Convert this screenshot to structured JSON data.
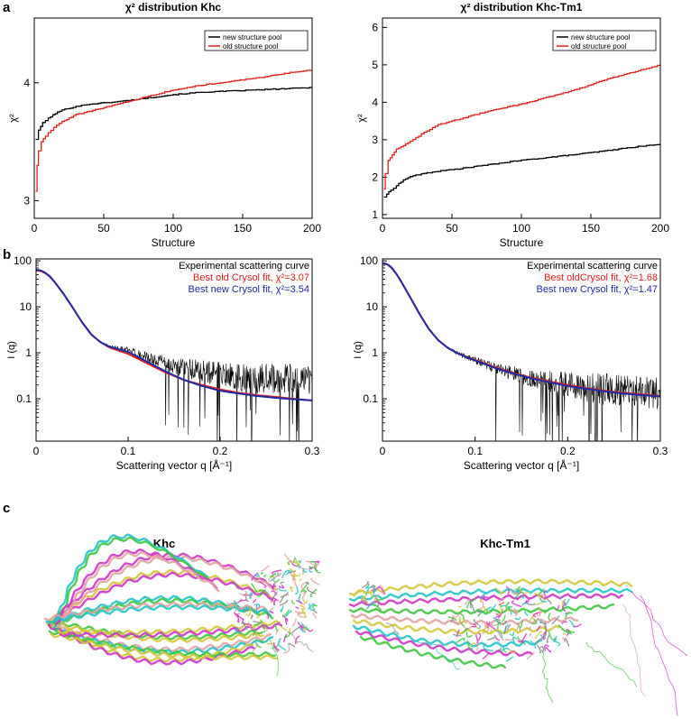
{
  "panels": {
    "a": "a",
    "b": "b",
    "c": "c"
  },
  "structures": {
    "left_title": "Khc",
    "right_title": "Khc-Tm1",
    "colors": [
      "#d4c63a",
      "#23c4c9",
      "#d234c8",
      "#3cc83c",
      "#e2a3a3",
      "#8c8c8c"
    ]
  },
  "chart_data": [
    {
      "id": "a-left",
      "type": "line",
      "title": "χ² distribution Khc",
      "xlabel": "Structure",
      "ylabel": "χ²",
      "xlim": [
        0,
        200
      ],
      "ylim": [
        2.85,
        4.55
      ],
      "xticks": [
        0,
        50,
        100,
        150,
        200
      ],
      "yticks": [
        3,
        4
      ],
      "legend_position": "top-right",
      "series": [
        {
          "name": "new structure pool",
          "color": "#000000",
          "x": [
            1,
            3,
            6,
            10,
            15,
            20,
            30,
            40,
            50,
            60,
            80,
            100,
            120,
            140,
            160,
            180,
            200
          ],
          "values": [
            3.52,
            3.6,
            3.66,
            3.7,
            3.74,
            3.77,
            3.8,
            3.82,
            3.83,
            3.84,
            3.87,
            3.9,
            3.92,
            3.93,
            3.94,
            3.95,
            3.96
          ]
        },
        {
          "name": "old structure pool",
          "color": "#e3201b",
          "x": [
            1,
            2,
            3,
            5,
            8,
            12,
            16,
            20,
            25,
            30,
            40,
            50,
            60,
            80,
            100,
            120,
            140,
            160,
            180,
            200
          ],
          "values": [
            3.08,
            3.3,
            3.42,
            3.5,
            3.55,
            3.6,
            3.64,
            3.67,
            3.7,
            3.73,
            3.76,
            3.79,
            3.82,
            3.88,
            3.94,
            3.98,
            4.01,
            4.04,
            4.08,
            4.11
          ]
        }
      ]
    },
    {
      "id": "a-right",
      "type": "line",
      "title": "χ² distribution Khc-Tm1",
      "xlabel": "Structure",
      "ylabel": "χ²",
      "xlim": [
        0,
        200
      ],
      "ylim": [
        0.9,
        6.25
      ],
      "xticks": [
        0,
        50,
        100,
        150,
        200
      ],
      "yticks": [
        1,
        2,
        3,
        4,
        5,
        6
      ],
      "legend_position": "top-right",
      "series": [
        {
          "name": "new structure pool",
          "color": "#000000",
          "x": [
            1,
            3,
            6,
            10,
            15,
            20,
            30,
            40,
            50,
            60,
            80,
            100,
            120,
            140,
            160,
            180,
            200
          ],
          "values": [
            1.47,
            1.55,
            1.65,
            1.78,
            1.92,
            2.02,
            2.1,
            2.16,
            2.2,
            2.25,
            2.35,
            2.45,
            2.53,
            2.61,
            2.7,
            2.8,
            2.88
          ]
        },
        {
          "name": "old structure pool",
          "color": "#e3201b",
          "x": [
            1,
            2,
            4,
            7,
            10,
            15,
            20,
            30,
            40,
            50,
            60,
            80,
            100,
            120,
            140,
            160,
            180,
            200
          ],
          "values": [
            1.68,
            2.1,
            2.45,
            2.6,
            2.75,
            2.85,
            2.95,
            3.2,
            3.4,
            3.5,
            3.6,
            3.8,
            3.95,
            4.15,
            4.35,
            4.6,
            4.8,
            5.0
          ]
        }
      ]
    },
    {
      "id": "b-left",
      "type": "line",
      "title": "",
      "xlabel": "Scattering vector q [Å⁻¹]",
      "ylabel": "I (q)",
      "xlim": [
        0,
        0.3
      ],
      "ylim": [
        0.012,
        110
      ],
      "yscale": "log",
      "xticks": [
        0,
        0.1,
        0.2,
        0.3
      ],
      "yticks": [
        0.1,
        1,
        10,
        100
      ],
      "legend_position": "top-right",
      "series": [
        {
          "name": "Experimental scattering curve",
          "color": "#000000",
          "x": [
            0,
            0.005,
            0.01,
            0.015,
            0.02,
            0.03,
            0.04,
            0.05,
            0.06,
            0.07,
            0.08,
            0.1,
            0.12,
            0.14,
            0.16,
            0.18,
            0.2,
            0.22,
            0.24,
            0.26,
            0.28,
            0.3
          ],
          "values": [
            62,
            60,
            54,
            45,
            35,
            19,
            9.5,
            4.6,
            2.5,
            1.7,
            1.35,
            1.1,
            0.8,
            0.6,
            0.47,
            0.4,
            0.33,
            0.3,
            0.28,
            0.27,
            0.26,
            0.25
          ]
        },
        {
          "name": "Best old Crysol fit, χ²=3.07",
          "color": "#e3201b",
          "x": [
            0,
            0.005,
            0.01,
            0.015,
            0.02,
            0.03,
            0.04,
            0.05,
            0.06,
            0.07,
            0.08,
            0.1,
            0.12,
            0.14,
            0.16,
            0.18,
            0.2,
            0.22,
            0.24,
            0.26,
            0.28,
            0.3
          ],
          "values": [
            62,
            60,
            54,
            45,
            35,
            19,
            9.5,
            4.6,
            2.5,
            1.7,
            1.3,
            0.95,
            0.6,
            0.38,
            0.26,
            0.2,
            0.16,
            0.135,
            0.12,
            0.11,
            0.1,
            0.092
          ]
        },
        {
          "name": "Best new Crysol fit, χ²=3.54",
          "color": "#1f2aa8",
          "x": [
            0,
            0.005,
            0.01,
            0.015,
            0.02,
            0.03,
            0.04,
            0.05,
            0.06,
            0.07,
            0.08,
            0.1,
            0.12,
            0.14,
            0.16,
            0.18,
            0.2,
            0.22,
            0.24,
            0.26,
            0.28,
            0.3
          ],
          "values": [
            64,
            62,
            55,
            46,
            35,
            19,
            9.5,
            4.6,
            2.5,
            1.7,
            1.35,
            1.05,
            0.65,
            0.4,
            0.26,
            0.19,
            0.15,
            0.13,
            0.115,
            0.105,
            0.098,
            0.092
          ]
        }
      ]
    },
    {
      "id": "b-right",
      "type": "line",
      "title": "",
      "xlabel": "Scattering vector q [Å⁻¹]",
      "ylabel": "I (q)",
      "xlim": [
        0,
        0.3
      ],
      "ylim": [
        0.012,
        110
      ],
      "yscale": "log",
      "xticks": [
        0,
        0.1,
        0.2,
        0.3
      ],
      "yticks": [
        0.1,
        1,
        10,
        100
      ],
      "legend_position": "top-right",
      "series": [
        {
          "name": "Experimental scattering curve",
          "color": "#000000",
          "x": [
            0,
            0.005,
            0.01,
            0.015,
            0.02,
            0.03,
            0.04,
            0.05,
            0.06,
            0.07,
            0.08,
            0.1,
            0.12,
            0.14,
            0.16,
            0.18,
            0.2,
            0.22,
            0.24,
            0.26,
            0.28,
            0.3
          ],
          "values": [
            88,
            84,
            70,
            52,
            36,
            16,
            7,
            3.3,
            1.9,
            1.3,
            1.0,
            0.68,
            0.48,
            0.36,
            0.28,
            0.24,
            0.2,
            0.18,
            0.16,
            0.15,
            0.14,
            0.13
          ]
        },
        {
          "name": "Best oldCrysol fit, χ²=1.68",
          "color": "#e3201b",
          "x": [
            0,
            0.005,
            0.01,
            0.015,
            0.02,
            0.03,
            0.04,
            0.05,
            0.06,
            0.07,
            0.08,
            0.1,
            0.12,
            0.14,
            0.16,
            0.18,
            0.2,
            0.22,
            0.24,
            0.26,
            0.28,
            0.3
          ],
          "values": [
            88,
            84,
            70,
            52,
            36,
            16,
            7,
            3.3,
            1.9,
            1.3,
            1.0,
            0.7,
            0.5,
            0.37,
            0.29,
            0.24,
            0.2,
            0.17,
            0.15,
            0.135,
            0.125,
            0.115
          ]
        },
        {
          "name": "Best new Crysol fit, χ²=1.47",
          "color": "#1f2aa8",
          "x": [
            0,
            0.005,
            0.01,
            0.015,
            0.02,
            0.03,
            0.04,
            0.05,
            0.06,
            0.07,
            0.08,
            0.1,
            0.12,
            0.14,
            0.16,
            0.18,
            0.2,
            0.22,
            0.24,
            0.26,
            0.28,
            0.3
          ],
          "values": [
            90,
            85,
            71,
            52,
            36,
            16,
            7,
            3.3,
            1.9,
            1.3,
            1.0,
            0.68,
            0.48,
            0.36,
            0.28,
            0.23,
            0.19,
            0.165,
            0.145,
            0.13,
            0.12,
            0.112
          ]
        }
      ]
    }
  ]
}
